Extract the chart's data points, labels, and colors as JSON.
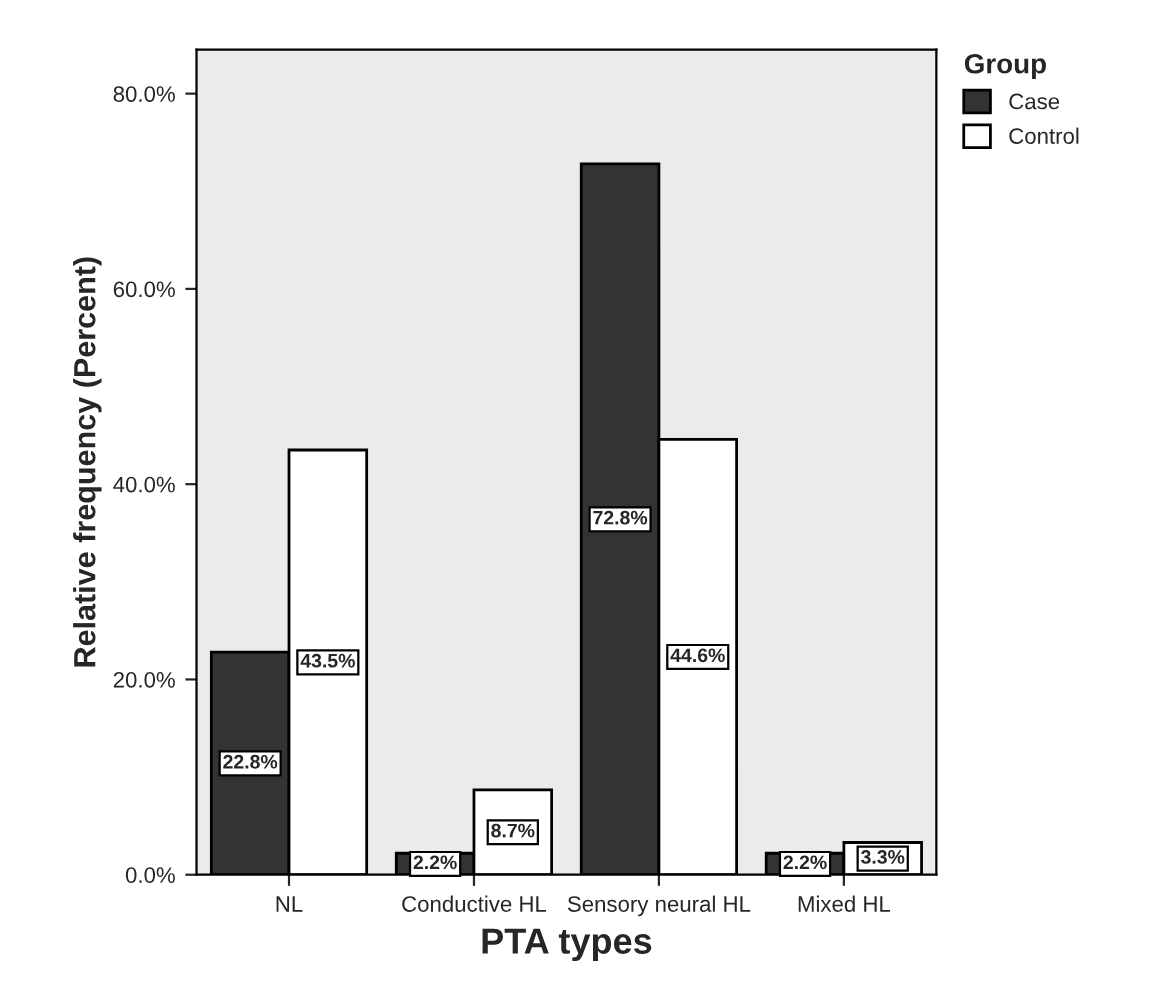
{
  "chart_data": {
    "type": "bar",
    "xlabel": "PTA types",
    "ylabel": "Relative frequency (Percent)",
    "legend_title": "Group",
    "categories": [
      "NL",
      "Conductive HL",
      "Sensory neural HL",
      "Mixed HL"
    ],
    "series": [
      {
        "name": "Case",
        "color": "#333333",
        "values": [
          22.8,
          2.2,
          72.8,
          2.2
        ],
        "value_labels": [
          "22.8%",
          "2.2%",
          "72.8%",
          "2.2%"
        ]
      },
      {
        "name": "Control",
        "color": "#ffffff",
        "values": [
          43.5,
          8.7,
          44.6,
          3.3
        ],
        "value_labels": [
          "43.5%",
          "8.7%",
          "44.6%",
          "3.3%"
        ]
      }
    ],
    "ylim": [
      0,
      84.5
    ],
    "yticks": [
      {
        "value": 0,
        "label": "0.0%"
      },
      {
        "value": 20,
        "label": "20.0%"
      },
      {
        "value": 40,
        "label": "40.0%"
      },
      {
        "value": 60,
        "label": "60.0%"
      },
      {
        "value": 80,
        "label": "80.0%"
      }
    ],
    "grid": false,
    "legend": "top right"
  }
}
